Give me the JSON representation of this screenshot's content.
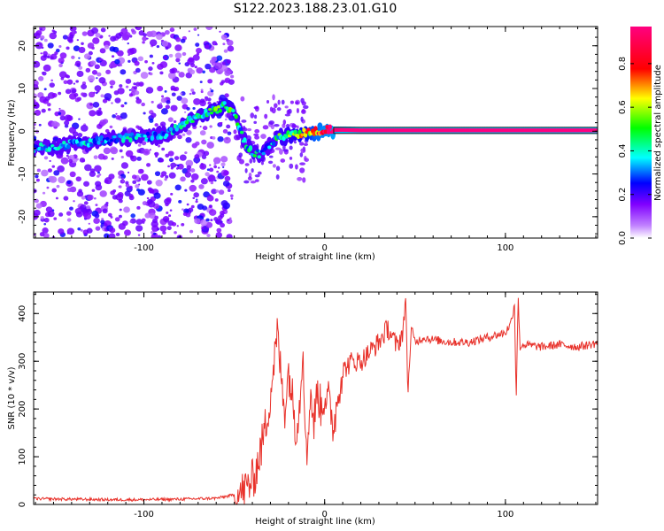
{
  "title": "S122.2023.188.23.01.G10",
  "chart_data": [
    {
      "type": "heatmap",
      "xlabel": "Height of straight line (km)",
      "ylabel": "Frequency (Hz)",
      "xlim": [
        -161,
        151
      ],
      "ylim": [
        -25,
        24.5
      ],
      "xticks": [
        -100,
        0,
        100
      ],
      "yticks": [
        -20,
        -10,
        0,
        10,
        20
      ],
      "colorbar": {
        "label": "Normalized spectral amplitude",
        "range": [
          0,
          0.97
        ],
        "ticks": [
          0.0,
          0.2,
          0.4,
          0.6,
          0.8
        ],
        "colormap": [
          "#ffffff",
          "#8000ff",
          "#0000ff",
          "#00ffff",
          "#00ff00",
          "#ffff00",
          "#ff0000",
          "#ff0080"
        ]
      },
      "ridge": {
        "x": [
          -161,
          -150,
          -140,
          -130,
          -120,
          -110,
          -100,
          -90,
          -80,
          -70,
          -60,
          -55,
          -50,
          -45,
          -40,
          -35,
          -30,
          -25,
          -20,
          -15,
          -10,
          -5,
          0,
          10,
          20,
          30,
          40,
          50,
          60,
          70,
          80,
          90,
          100,
          110,
          120,
          130,
          140,
          151
        ],
        "y": [
          -4,
          -3.5,
          -3,
          -2.5,
          -2,
          -1.5,
          -1.5,
          -1,
          1,
          3.5,
          5,
          6,
          4.5,
          -2,
          -5,
          -5.5,
          -3,
          -1.5,
          -1,
          -0.5,
          0,
          0,
          0.3,
          0.3,
          0.2,
          0.2,
          0.2,
          0.2,
          0.2,
          0.2,
          0.2,
          0.2,
          0.2,
          0.2,
          0.2,
          0.2,
          0.2,
          0.2
        ],
        "amplitude": [
          0.3,
          0.35,
          0.3,
          0.35,
          0.3,
          0.35,
          0.3,
          0.3,
          0.35,
          0.4,
          0.45,
          0.5,
          0.45,
          0.35,
          0.4,
          0.35,
          0.3,
          0.45,
          0.5,
          0.6,
          0.75,
          0.85,
          0.9,
          0.97,
          0.97,
          0.97,
          0.97,
          0.97,
          0.97,
          0.97,
          0.97,
          0.97,
          0.97,
          0.97,
          0.97,
          0.97,
          0.97,
          0.97
        ]
      }
    },
    {
      "type": "line",
      "xlabel": "Height of straight line (km)",
      "ylabel": "SNR (10 * v/v)",
      "xlim": [
        -161,
        151
      ],
      "ylim": [
        0,
        445
      ],
      "xticks": [
        -100,
        0,
        100
      ],
      "yticks": [
        0,
        100,
        200,
        300,
        400
      ],
      "color": "#e8312a",
      "series": [
        {
          "x": [
            -161,
            -140,
            -120,
            -100,
            -80,
            -60,
            -50,
            -45,
            -40,
            -38,
            -35,
            -32,
            -30,
            -28,
            -26,
            -24,
            -22,
            -20,
            -18,
            -16,
            -14,
            -12,
            -10,
            -8,
            -6,
            -4,
            -2,
            0,
            2,
            5,
            8,
            10,
            15,
            20,
            25,
            30,
            35,
            40,
            43,
            45,
            46,
            48,
            50,
            55,
            60,
            70,
            80,
            90,
            100,
            103,
            105,
            106,
            107,
            108,
            110,
            120,
            130,
            140,
            151
          ],
          "y": [
            12,
            11,
            10,
            10,
            11,
            13,
            20,
            28,
            50,
            70,
            120,
            180,
            230,
            300,
            360,
            260,
            200,
            280,
            230,
            160,
            200,
            340,
            80,
            240,
            170,
            240,
            200,
            230,
            220,
            160,
            250,
            280,
            300,
            300,
            320,
            340,
            370,
            330,
            360,
            420,
            230,
            370,
            340,
            350,
            345,
            340,
            340,
            350,
            360,
            380,
            420,
            220,
            440,
            330,
            335,
            330,
            335,
            330,
            338
          ]
        }
      ]
    }
  ]
}
